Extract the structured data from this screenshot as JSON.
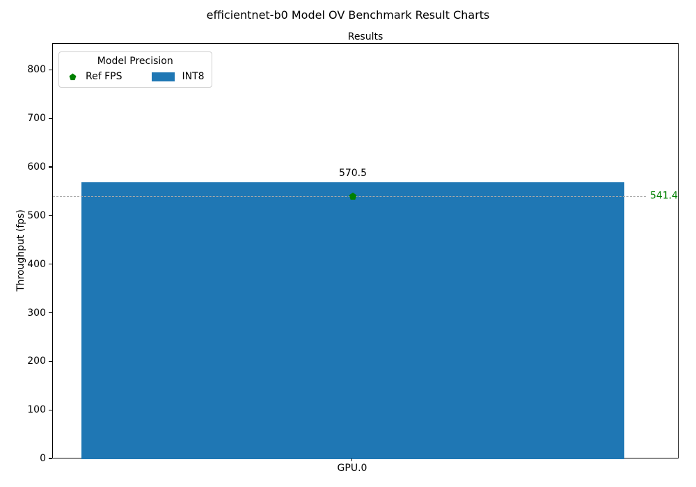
{
  "chart_data": {
    "type": "bar",
    "suptitle": "efficientnet-b0 Model OV Benchmark Result Charts",
    "title": "Results",
    "ylabel": "Throughput (fps)",
    "xlabel": "",
    "categories": [
      "GPU.0"
    ],
    "series": [
      {
        "name": "INT8",
        "values": [
          570.5
        ],
        "color": "#1f77b4"
      }
    ],
    "bar_labels": [
      "570.5"
    ],
    "ref_line": {
      "name": "Ref FPS",
      "value": 541.4,
      "value_label": "541.4",
      "color": "#008000",
      "line_color": "#a9a9a9",
      "line_style": "dashed",
      "marker": "pentagon"
    },
    "ylim": [
      0,
      855
    ],
    "yticks": [
      0,
      100,
      200,
      300,
      400,
      500,
      600,
      700,
      800
    ],
    "grid": false,
    "legend": {
      "title": "Model Precision",
      "position": "upper left",
      "entries": [
        {
          "label": "Ref FPS",
          "marker": "pentagon",
          "color": "#008000"
        },
        {
          "label": "INT8",
          "marker": "rect",
          "color": "#1f77b4"
        }
      ]
    }
  }
}
